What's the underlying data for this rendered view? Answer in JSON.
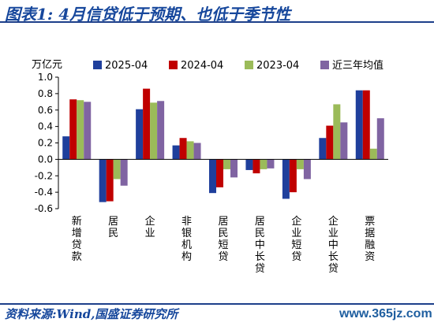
{
  "header": {
    "title": "图表1:  4月信贷低于预期、也低于季节性"
  },
  "footer": {
    "source": "资料来源:Wind,国盛证券研究所",
    "watermark": "www.365jz.com"
  },
  "colors": {
    "title": "#16479c",
    "rule": "#1d3f8a",
    "series": [
      "#1f3f9c",
      "#c00000",
      "#9bbb59",
      "#8064a2"
    ]
  },
  "chart_data": {
    "type": "bar",
    "ylabel": "万亿元",
    "ylim": [
      -0.6,
      1.0
    ],
    "yticks": [
      -0.6,
      -0.4,
      -0.2,
      0.0,
      0.2,
      0.4,
      0.6,
      0.8,
      1.0
    ],
    "ytick_labels": [
      "-0.6",
      "-0.4",
      "-0.2",
      "0.0",
      "0.2",
      "0.4",
      "0.6",
      "0.8",
      "1.0"
    ],
    "grid": false,
    "legend_position": "top",
    "categories": [
      "新增贷款",
      "居民",
      "企业",
      "非银机构",
      "居民短贷",
      "居民中长贷",
      "企业短贷",
      "企业中长贷",
      "票据融资"
    ],
    "series": [
      {
        "name": "2025-04",
        "values": [
          0.28,
          -0.52,
          0.61,
          0.17,
          -0.41,
          -0.13,
          -0.48,
          0.26,
          0.84
        ]
      },
      {
        "name": "2024-04",
        "values": [
          0.73,
          -0.51,
          0.86,
          0.26,
          -0.34,
          -0.17,
          -0.4,
          0.41,
          0.84
        ]
      },
      {
        "name": "2023-04",
        "values": [
          0.72,
          -0.24,
          0.69,
          0.22,
          -0.12,
          -0.12,
          -0.12,
          0.67,
          0.13
        ]
      },
      {
        "name": "近三年均值",
        "values": [
          0.7,
          -0.32,
          0.71,
          0.2,
          -0.22,
          -0.11,
          -0.24,
          0.45,
          0.5
        ]
      }
    ]
  }
}
